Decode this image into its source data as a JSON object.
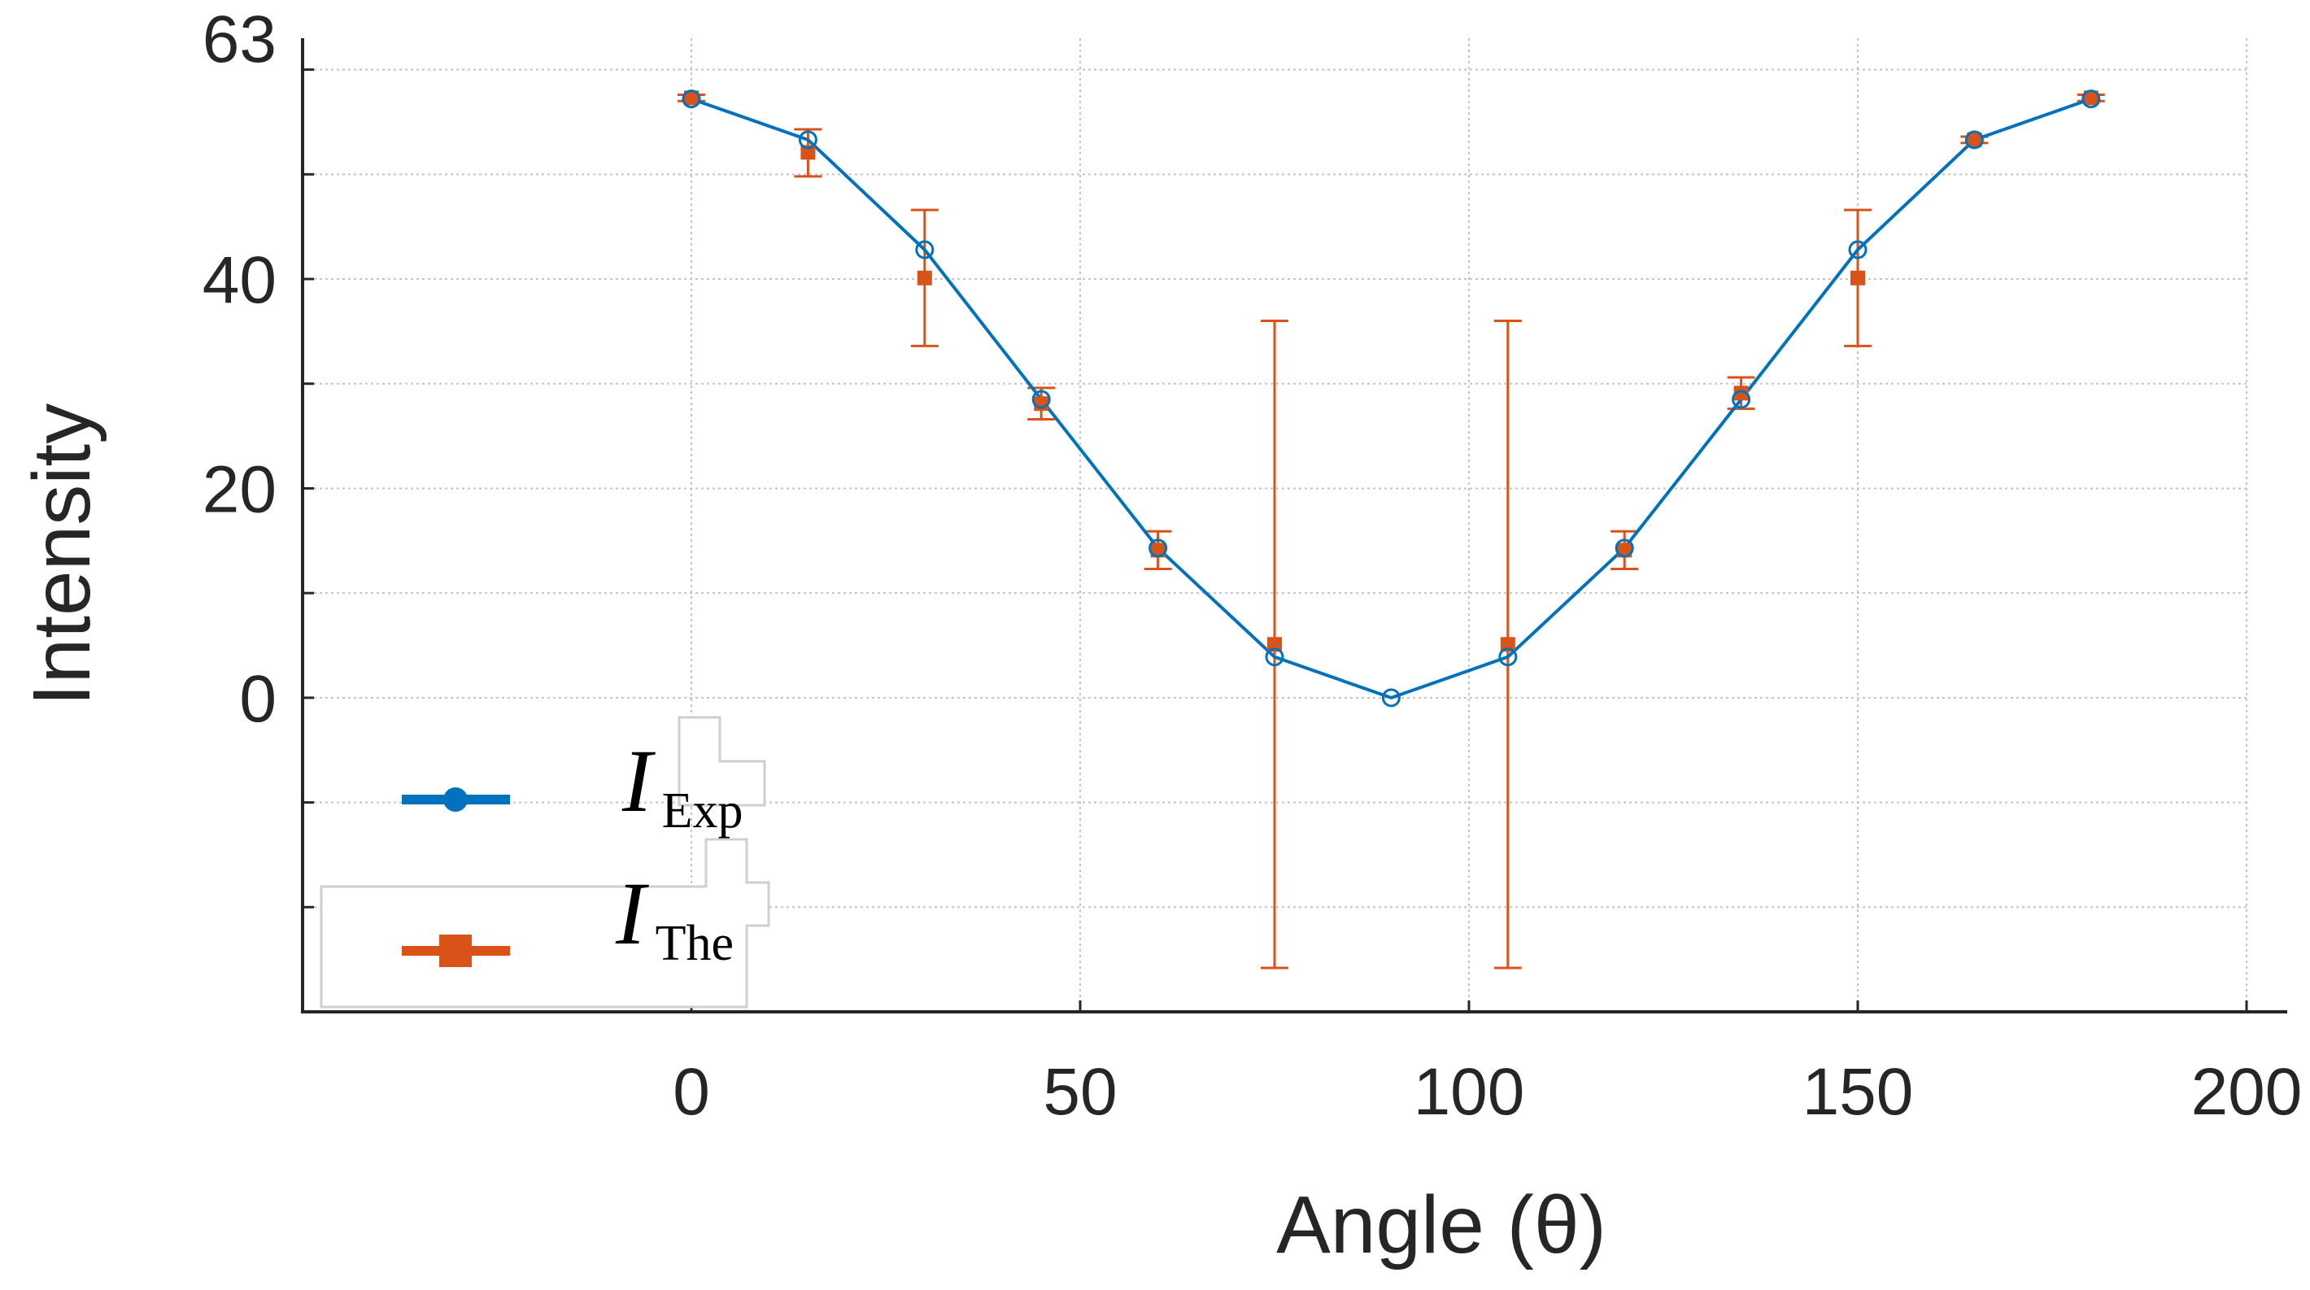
{
  "chart_data": {
    "type": "line",
    "title": "",
    "xlabel": "Angle (θ)",
    "ylabel": "Intensity",
    "xlim": [
      -50,
      200
    ],
    "ylim": [
      -30,
      63
    ],
    "xticks": [
      0,
      50,
      100,
      150,
      200
    ],
    "xtick_labels": [
      "0",
      "50",
      "100",
      "150",
      "200"
    ],
    "yticks": [
      -20,
      -10,
      0,
      10,
      20,
      30,
      40,
      50,
      60
    ],
    "ytick_labels": [
      {
        "value": 63,
        "label": "63"
      },
      {
        "value": 40,
        "label": "40"
      },
      {
        "value": 20,
        "label": "20"
      },
      {
        "value": 0,
        "label": "0"
      }
    ],
    "grid": true,
    "legend_position": "bottom-left",
    "series": [
      {
        "name": "I_Exp",
        "legend_main": "I",
        "legend_sub": "Exp",
        "color": "#0072BD",
        "marker": "circle",
        "line": true,
        "x": [
          0,
          15,
          30,
          45,
          60,
          75,
          90,
          105,
          120,
          135,
          150,
          165,
          180
        ],
        "y": [
          57.2,
          53.3,
          42.8,
          28.5,
          14.3,
          3.9,
          0,
          3.9,
          14.3,
          28.5,
          42.8,
          53.3,
          57.2
        ]
      },
      {
        "name": "I_The",
        "legend_main": "I",
        "legend_sub": "The",
        "color": "#D95319",
        "marker": "square",
        "line": false,
        "x": [
          0,
          15,
          30,
          45,
          60,
          75,
          90,
          105,
          120,
          135,
          150,
          165,
          180
        ],
        "y": [
          57.3,
          52.1,
          40.1,
          28.1,
          14.1,
          5.1,
          null,
          5.1,
          14.1,
          29.1,
          40.1,
          53.3,
          57.3
        ],
        "err_low": [
          57.0,
          49.8,
          33.6,
          26.6,
          12.3,
          -25.8,
          null,
          -25.8,
          12.3,
          27.6,
          33.6,
          53.0,
          57.0
        ],
        "err_high": [
          57.6,
          54.3,
          46.6,
          29.6,
          15.9,
          36.0,
          null,
          36.0,
          15.9,
          30.6,
          46.6,
          53.6,
          57.6
        ]
      }
    ]
  }
}
